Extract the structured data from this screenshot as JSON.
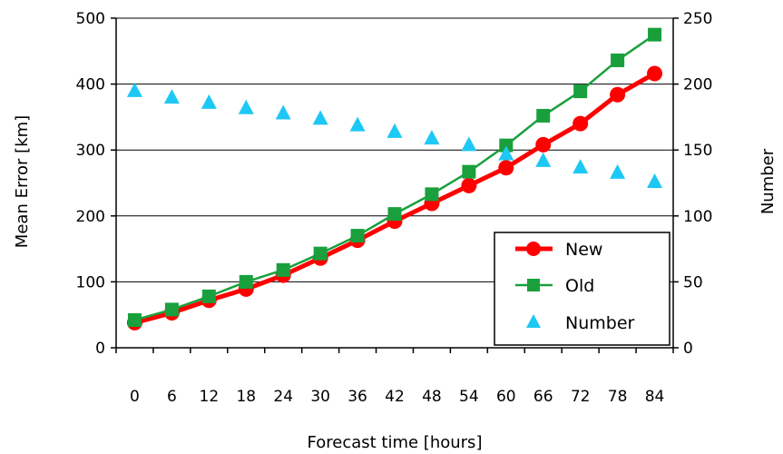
{
  "chart_data": {
    "type": "line",
    "x": [
      0,
      6,
      12,
      18,
      24,
      30,
      36,
      42,
      48,
      54,
      60,
      66,
      72,
      78,
      84
    ],
    "xlabel": "Forecast time [hours]",
    "ylabel": "Mean Error [km]",
    "y2label": "Number",
    "ylim": [
      0,
      500
    ],
    "y2lim": [
      0,
      250
    ],
    "yticks": [
      0,
      100,
      200,
      300,
      400,
      500
    ],
    "y2ticks": [
      0,
      50,
      100,
      150,
      200,
      250
    ],
    "grid": "horizontal",
    "legend_position": "bottom-right",
    "series": [
      {
        "name": "New",
        "axis": "left",
        "marker": "circle",
        "color": "#ff0000",
        "values": [
          38,
          53,
          72,
          89,
          110,
          136,
          163,
          192,
          219,
          246,
          273,
          308,
          340,
          384,
          416
        ]
      },
      {
        "name": "Old",
        "axis": "left",
        "marker": "square",
        "color": "#19a03c",
        "values": [
          42,
          58,
          78,
          100,
          118,
          143,
          170,
          203,
          233,
          267,
          307,
          352,
          389,
          436,
          475
        ]
      },
      {
        "name": "Number",
        "axis": "right",
        "marker": "triangle",
        "color": "#1ec8f5",
        "values": [
          195,
          190,
          186,
          182,
          178,
          174,
          169,
          164,
          159,
          154,
          147,
          142,
          137,
          133,
          126
        ]
      }
    ]
  }
}
